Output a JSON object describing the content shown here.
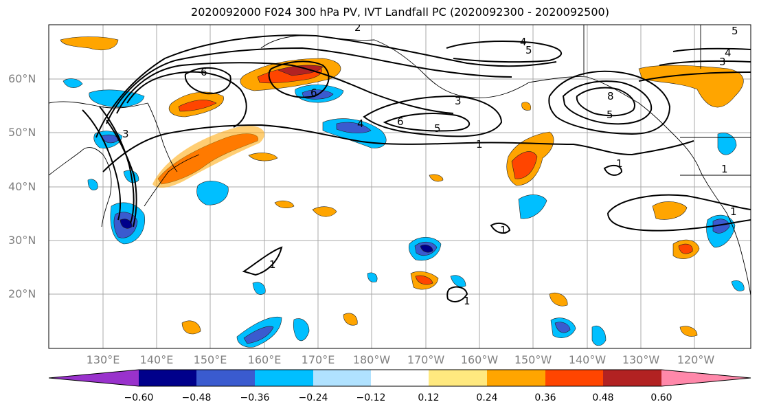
{
  "title": "2020092000 F024 300 hPa PV, IVT Landfall PC (2020092300 - 2020092500)",
  "latitude_labels": [
    "60°N",
    "50°N",
    "40°N",
    "30°N",
    "20°N"
  ],
  "longitude_labels": [
    "130°E",
    "140°E",
    "150°E",
    "160°E",
    "170°E",
    "180°W",
    "170°W",
    "160°W",
    "150°W",
    "140°W",
    "130°W",
    "120°W"
  ],
  "colorbar": {
    "colors": [
      "#9932cc",
      "#00008b",
      "#3a5bcf",
      "#00bfff",
      "#b0e2ff",
      "#ffffff",
      "#ffe97f",
      "#ffa500",
      "#ff4500",
      "#b22222",
      "#ff88aa"
    ],
    "tick_labels": [
      "−0.60",
      "−0.48",
      "−0.36",
      "−0.24",
      "−0.12",
      "0.12",
      "0.24",
      "0.36",
      "0.48",
      "0.60"
    ]
  },
  "contour_labels": [
    "6",
    "2",
    "4",
    "5",
    "4",
    "3",
    "6",
    "3",
    "5",
    "5",
    "6",
    "1",
    "3",
    "4",
    "8",
    "5",
    "1",
    "1",
    "1",
    "1",
    "1",
    "1"
  ]
}
